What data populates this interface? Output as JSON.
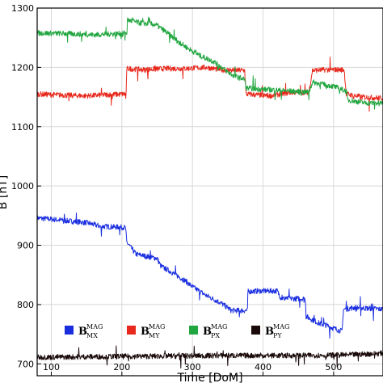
{
  "chart_data": {
    "type": "line",
    "title": "",
    "xlabel": "Time [DoM]",
    "ylabel": "B [nT]",
    "xlim": [
      80,
      570
    ],
    "ylim": [
      680,
      1300
    ],
    "xticks": [
      100,
      200,
      300,
      400,
      500
    ],
    "yticks": [
      700,
      800,
      900,
      1000,
      1100,
      1200,
      1300
    ],
    "grid": true,
    "legend_placement": "bottom-left",
    "series": [
      {
        "name": "B",
        "sub": "MX",
        "sup": "MAG",
        "color": "#1a2ee0",
        "x": [
          80,
          100,
          150,
          170,
          205,
          207,
          220,
          240,
          250,
          255,
          270,
          290,
          300,
          320,
          340,
          355,
          370,
          378,
          379,
          395,
          420,
          425,
          430,
          460,
          461,
          480,
          490,
          500,
          512,
          514,
          530,
          570
        ],
        "y": [
          946,
          944,
          938,
          932,
          930,
          905,
          885,
          880,
          878,
          865,
          855,
          840,
          830,
          815,
          803,
          790,
          790,
          790,
          822,
          823,
          823,
          812,
          810,
          810,
          780,
          768,
          765,
          760,
          755,
          792,
          795,
          792
        ]
      },
      {
        "name": "B",
        "sub": "MY",
        "sup": "MAG",
        "color": "#e8281c",
        "x": [
          80,
          120,
          150,
          180,
          206,
          207,
          230,
          260,
          290,
          320,
          340,
          355,
          374,
          376,
          410,
          440,
          465,
          470,
          490,
          515,
          518,
          540,
          570
        ],
        "y": [
          1155,
          1153,
          1152,
          1154,
          1155,
          1198,
          1196,
          1198,
          1198,
          1200,
          1196,
          1195,
          1195,
          1155,
          1152,
          1158,
          1158,
          1195,
          1196,
          1196,
          1155,
          1150,
          1148
        ]
      },
      {
        "name": "B",
        "sub": "PX",
        "sup": "MAG",
        "color": "#22a640",
        "x": [
          80,
          120,
          160,
          200,
          207,
          208,
          225,
          248,
          260,
          275,
          290,
          310,
          330,
          350,
          360,
          374,
          376,
          400,
          440,
          465,
          470,
          500,
          518,
          520,
          545,
          570
        ],
        "y": [
          1258,
          1257,
          1255,
          1257,
          1258,
          1280,
          1275,
          1272,
          1262,
          1248,
          1235,
          1220,
          1210,
          1192,
          1185,
          1180,
          1165,
          1163,
          1160,
          1158,
          1175,
          1168,
          1160,
          1145,
          1140,
          1140
        ]
      },
      {
        "name": "B",
        "sub": "PY",
        "sup": "MAG",
        "color": "#1a0a0a",
        "x": [
          80,
          150,
          250,
          350,
          450,
          520,
          570
        ],
        "y": [
          711,
          712,
          713,
          714,
          714,
          715,
          718
        ]
      }
    ]
  }
}
